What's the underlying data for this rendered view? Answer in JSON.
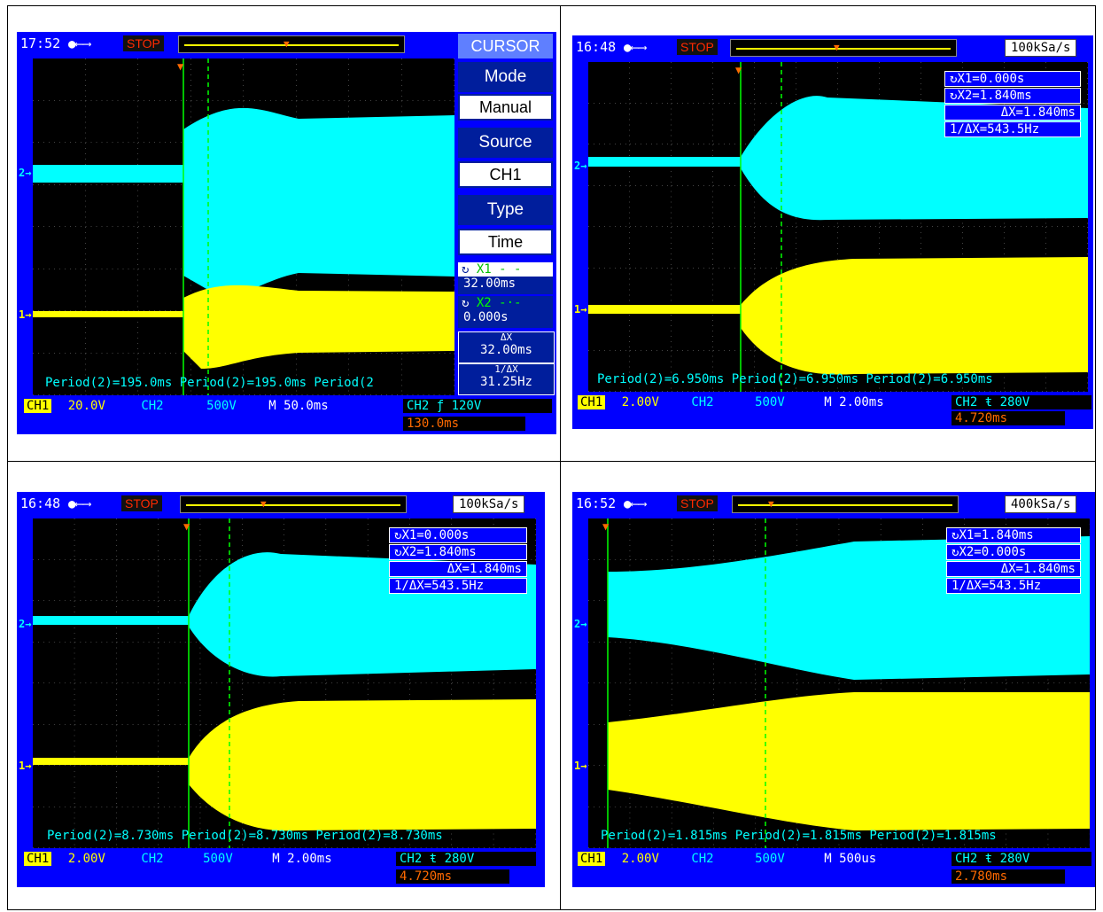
{
  "panels": [
    {
      "time": "17:52",
      "status": "STOP",
      "side_menu": {
        "title": "CURSOR",
        "mode_label": "Mode",
        "mode_value": "Manual",
        "source_label": "Source",
        "source_value": "CH1",
        "type_label": "Type",
        "type_value": "Time",
        "x1_label": "X1 - -",
        "x1_value": "32.00ms",
        "x2_label": "X2 -·-",
        "x2_value": "0.000s",
        "dx_label": "ΔX",
        "dx_value": "32.00ms",
        "inv_label": "1/ΔX",
        "inv_value": "31.25Hz"
      },
      "period_text": "Period(2)=195.0ms Period(2)=195.0ms Period(2",
      "ch1_label": "CH1",
      "ch1_value": "20.0V",
      "ch2_label": "CH2",
      "ch2_value": "500V",
      "timebase": "M 50.0ms",
      "trigger": "CH2 ƒ 120V",
      "trigger_offset": "130.0ms"
    },
    {
      "time": "16:48",
      "status": "STOP",
      "sample_rate": "100kSa/s",
      "cursor_x1": "X1=0.000s",
      "cursor_x2": "X2=1.840ms",
      "cursor_dx": "ΔX=1.840ms",
      "cursor_inv": "1/ΔX=543.5Hz",
      "period_text": "Period(2)=6.950ms Period(2)=6.950ms Period(2)=6.950ms",
      "ch1_label": "CH1",
      "ch1_value": "2.00V",
      "ch2_label": "CH2",
      "ch2_value": "500V",
      "timebase": "M 2.00ms",
      "trigger": "CH2 ŧ 280V",
      "trigger_offset": "4.720ms"
    },
    {
      "time": "16:48",
      "status": "STOP",
      "sample_rate": "100kSa/s",
      "cursor_x1": "X1=0.000s",
      "cursor_x2": "X2=1.840ms",
      "cursor_dx": "ΔX=1.840ms",
      "cursor_inv": "1/ΔX=543.5Hz",
      "period_text": "Period(2)=8.730ms Period(2)=8.730ms Period(2)=8.730ms",
      "ch1_label": "CH1",
      "ch1_value": "2.00V",
      "ch2_label": "CH2",
      "ch2_value": "500V",
      "timebase": "M 2.00ms",
      "trigger": "CH2 ŧ 280V",
      "trigger_offset": "4.720ms"
    },
    {
      "time": "16:52",
      "status": "STOP",
      "sample_rate": "400kSa/s",
      "cursor_x1": "X1=1.840ms",
      "cursor_x2": "X2=0.000s",
      "cursor_dx": "ΔX=1.840ms",
      "cursor_inv": "1/ΔX=543.5Hz",
      "period_text": "Period(2)=1.815ms Period(2)=1.815ms Period(2)=1.815ms",
      "ch1_label": "CH1",
      "ch1_value": "2.00V",
      "ch2_label": "CH2",
      "ch2_value": "500V",
      "timebase": "M 500us",
      "trigger": "CH2 ŧ 280V",
      "trigger_offset": "2.780ms"
    }
  ],
  "icons": {
    "usb": "usb-icon",
    "cursor_loop": "cursor-loop-icon",
    "trigger_marker": "trigger-marker-icon",
    "channel_marker": "channel-marker-icon"
  },
  "colors": {
    "frame_blue": "#0000ff",
    "ch1": "#ffff00",
    "ch2": "#00ffff",
    "stop": "#ff2a00",
    "trigger_offset": "#ff6a00",
    "cursor_line": "#00ff00"
  }
}
